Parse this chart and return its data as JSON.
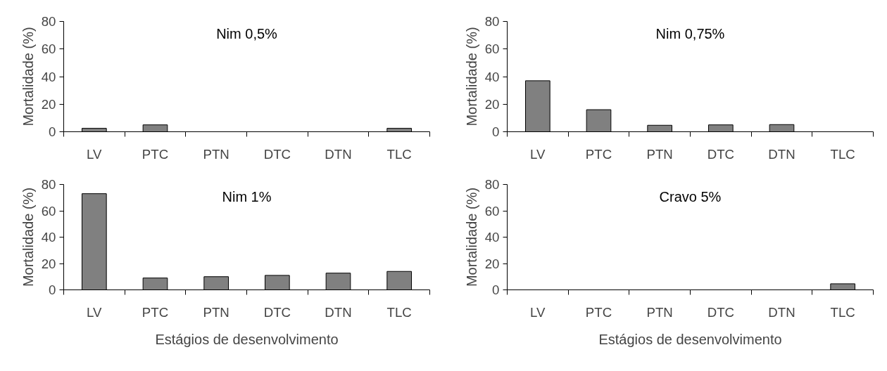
{
  "chart_data": [
    {
      "type": "bar",
      "title": "Nim 0,5%",
      "ylabel": "Mortalidade (%)",
      "categories": [
        "LV",
        "PTC",
        "PTN",
        "DTC",
        "DTN",
        "TLC"
      ],
      "values": [
        2.5,
        5,
        0,
        0,
        0,
        2.5
      ],
      "color": "#808080",
      "ylim": [
        0,
        80
      ],
      "yticks": [
        0,
        20,
        40,
        60,
        80
      ]
    },
    {
      "type": "bar",
      "title": "Nim 0,75%",
      "ylabel": "Mortalidade (%)",
      "categories": [
        "LV",
        "PTC",
        "PTN",
        "DTC",
        "DTN",
        "TLC"
      ],
      "values": [
        37,
        16,
        4.7,
        5,
        5.2,
        0
      ],
      "color": "#808080",
      "ylim": [
        0,
        80
      ],
      "yticks": [
        0,
        20,
        40,
        60,
        80
      ]
    },
    {
      "type": "bar",
      "title": "Nim 1%",
      "ylabel": "Mortalidade (%)",
      "xlabel": "Estágios de desenvolvimento",
      "categories": [
        "LV",
        "PTC",
        "PTN",
        "DTC",
        "DTN",
        "TLC"
      ],
      "values": [
        73,
        9,
        10,
        11,
        12.7,
        14
      ],
      "color": "#808080",
      "ylim": [
        0,
        80
      ],
      "yticks": [
        0,
        20,
        40,
        60,
        80
      ]
    },
    {
      "type": "bar",
      "title": "Cravo 5%",
      "ylabel": "Mortalidade (%)",
      "xlabel": "Estágios de desenvolvimento",
      "categories": [
        "LV",
        "PTC",
        "PTN",
        "DTC",
        "DTN",
        "TLC"
      ],
      "values": [
        0,
        0,
        0,
        0,
        0,
        4.6
      ],
      "color": "#808080",
      "ylim": [
        0,
        80
      ],
      "yticks": [
        0,
        20,
        40,
        60,
        80
      ]
    }
  ]
}
